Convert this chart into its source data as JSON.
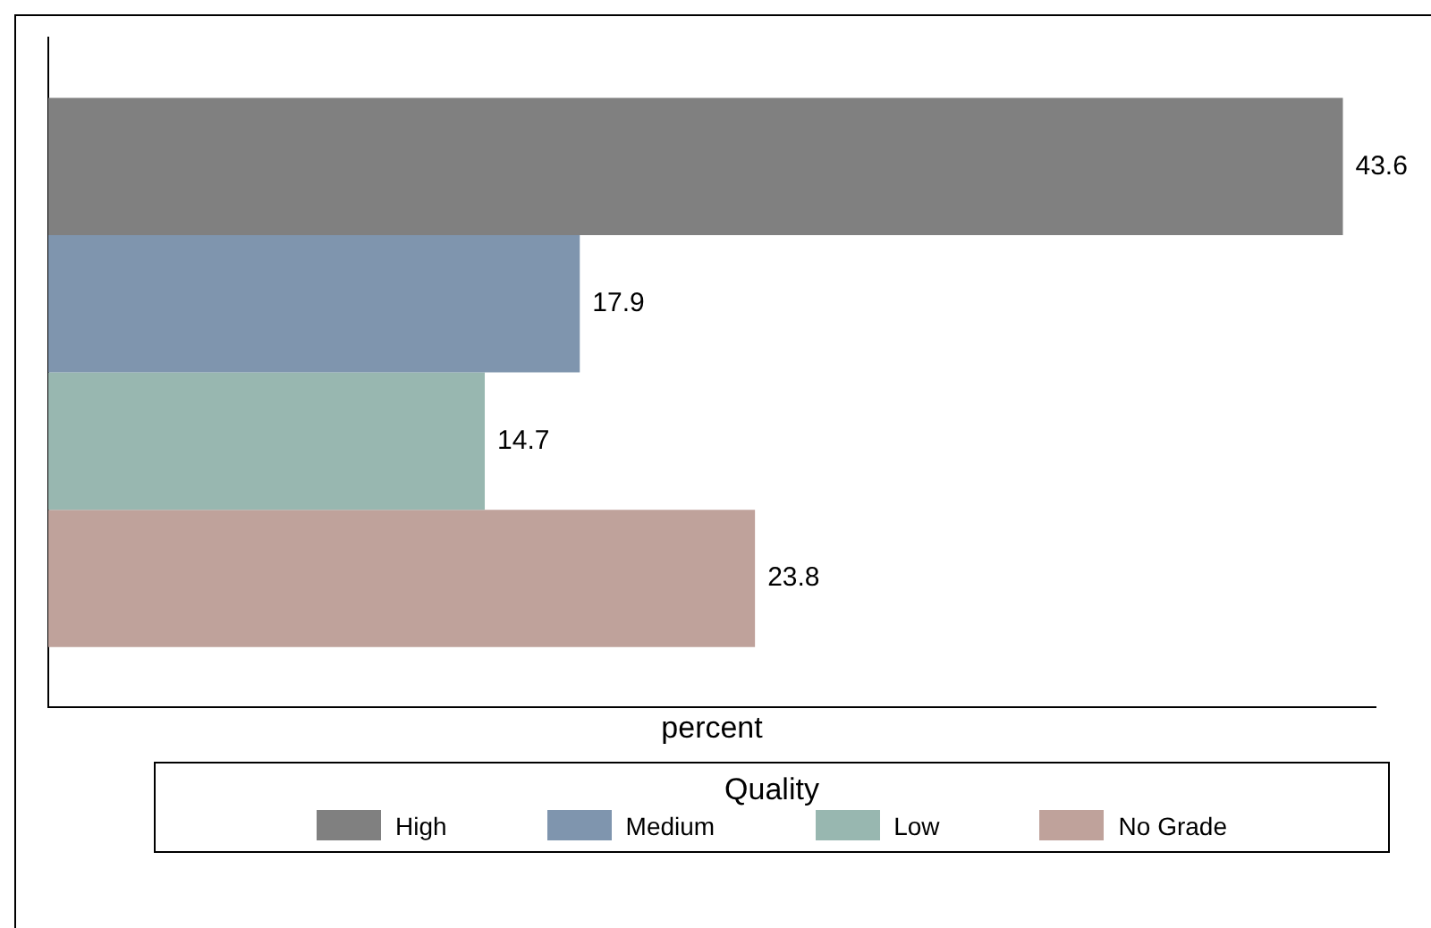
{
  "chart_data": {
    "type": "bar",
    "orientation": "horizontal",
    "xlabel": "percent",
    "legend_title": "Quality",
    "legend": "bottom",
    "grid": false,
    "tick_labels": false,
    "data_labels": true,
    "categories": [
      null
    ],
    "xlim": [
      0,
      44.7
    ],
    "series": [
      {
        "name": "High",
        "color": "#808080",
        "values": [
          43.6
        ]
      },
      {
        "name": "Medium",
        "color": "#7f95ae",
        "values": [
          17.9
        ]
      },
      {
        "name": "Low",
        "color": "#98b7b0",
        "values": [
          14.7
        ]
      },
      {
        "name": "No Grade",
        "color": "#bfa29b",
        "values": [
          23.8
        ]
      }
    ]
  }
}
